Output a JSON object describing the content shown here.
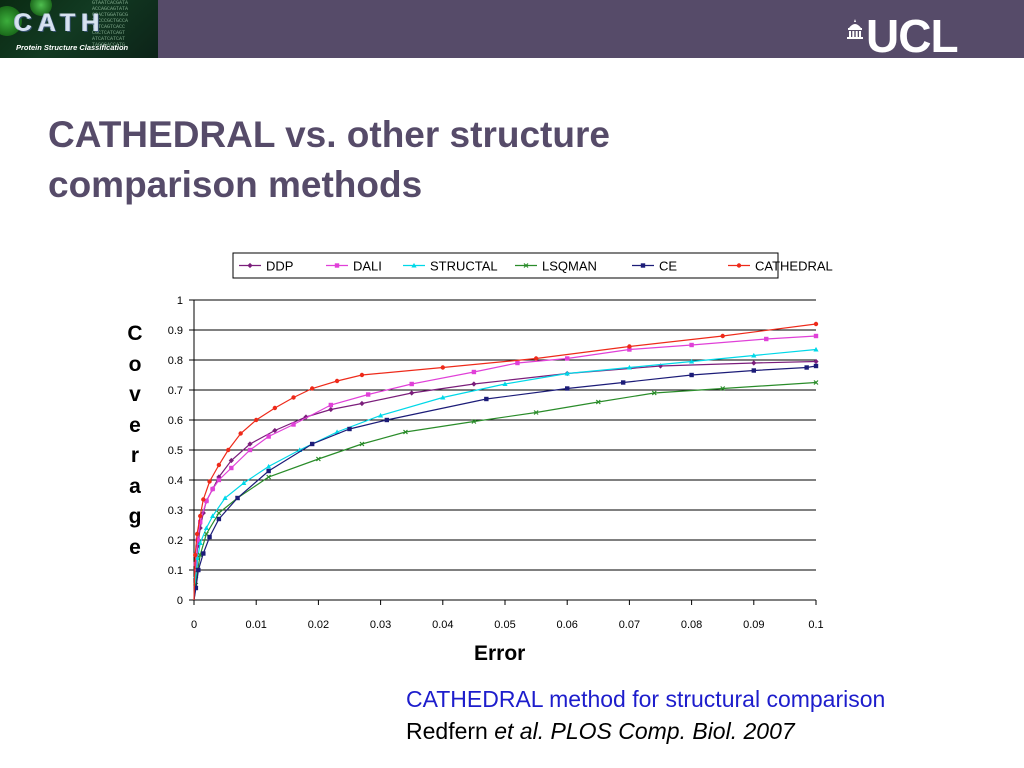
{
  "header": {
    "left_logo": {
      "name": "CATH",
      "subtitle": "Protein Structure Classification",
      "sequence_text": [
        "GTAATCACGATA",
        "ACCAGCAGTATA",
        "CGACTGGATGCG",
        "TACCCGCTGCCA",
        "TATCAGTCACC",
        "CGCTCATCAGT",
        "ATCATCATCAT",
        "TAGCGACCATG"
      ]
    },
    "right_logo": {
      "name": "UCL"
    },
    "bar_color": "#564b69"
  },
  "slide": {
    "title": "CATHEDRAL vs. other structure comparison methods",
    "ylabel_letters": [
      "C",
      "o",
      "v",
      "e",
      "r",
      "a",
      "g",
      "e"
    ],
    "xlabel": "Error",
    "caption_line1": "CATHEDRAL method for structural comparison",
    "caption_line2_prefix": "Redfern ",
    "caption_line2_italic": "et al. PLOS Comp. Biol. 2007"
  },
  "chart_data": {
    "type": "line",
    "title": "",
    "xlabel": "Error",
    "ylabel": "Coverage",
    "xlim": [
      0,
      0.1
    ],
    "ylim": [
      0,
      1
    ],
    "x_ticks": [
      "0",
      "0.01",
      "0.02",
      "0.03",
      "0.04",
      "0.05",
      "0.06",
      "0.07",
      "0.08",
      "0.09",
      "0.1"
    ],
    "y_ticks": [
      "0",
      "0.1",
      "0.2",
      "0.3",
      "0.4",
      "0.5",
      "0.6",
      "0.7",
      "0.8",
      "0.9",
      "1"
    ],
    "grid": "horizontal",
    "legend_position": "top",
    "series": [
      {
        "name": "DDP",
        "color": "#7b1e7b",
        "marker": "diamond",
        "points": [
          [
            0,
            0
          ],
          [
            0.0003,
            0.1
          ],
          [
            0.0006,
            0.18
          ],
          [
            0.001,
            0.24
          ],
          [
            0.0015,
            0.29
          ],
          [
            0.002,
            0.33
          ],
          [
            0.003,
            0.37
          ],
          [
            0.004,
            0.41
          ],
          [
            0.006,
            0.465
          ],
          [
            0.009,
            0.52
          ],
          [
            0.013,
            0.565
          ],
          [
            0.018,
            0.61
          ],
          [
            0.022,
            0.635
          ],
          [
            0.027,
            0.655
          ],
          [
            0.035,
            0.69
          ],
          [
            0.045,
            0.72
          ],
          [
            0.06,
            0.755
          ],
          [
            0.075,
            0.78
          ],
          [
            0.09,
            0.79
          ],
          [
            0.1,
            0.795
          ]
        ]
      },
      {
        "name": "DALI",
        "color": "#e040d8",
        "marker": "square",
        "points": [
          [
            0,
            0
          ],
          [
            0.0003,
            0.12
          ],
          [
            0.0006,
            0.2
          ],
          [
            0.001,
            0.26
          ],
          [
            0.002,
            0.33
          ],
          [
            0.003,
            0.37
          ],
          [
            0.004,
            0.4
          ],
          [
            0.006,
            0.44
          ],
          [
            0.009,
            0.5
          ],
          [
            0.012,
            0.545
          ],
          [
            0.016,
            0.585
          ],
          [
            0.022,
            0.65
          ],
          [
            0.028,
            0.685
          ],
          [
            0.035,
            0.72
          ],
          [
            0.045,
            0.76
          ],
          [
            0.052,
            0.79
          ],
          [
            0.06,
            0.805
          ],
          [
            0.07,
            0.835
          ],
          [
            0.08,
            0.85
          ],
          [
            0.092,
            0.87
          ],
          [
            0.1,
            0.88
          ]
        ]
      },
      {
        "name": "STRUCTAL",
        "color": "#00d8e8",
        "marker": "triangle",
        "points": [
          [
            0,
            0
          ],
          [
            0.0003,
            0.08
          ],
          [
            0.0006,
            0.14
          ],
          [
            0.001,
            0.19
          ],
          [
            0.002,
            0.24
          ],
          [
            0.003,
            0.28
          ],
          [
            0.005,
            0.34
          ],
          [
            0.008,
            0.39
          ],
          [
            0.012,
            0.445
          ],
          [
            0.017,
            0.5
          ],
          [
            0.023,
            0.56
          ],
          [
            0.03,
            0.615
          ],
          [
            0.04,
            0.675
          ],
          [
            0.05,
            0.72
          ],
          [
            0.06,
            0.755
          ],
          [
            0.07,
            0.775
          ],
          [
            0.08,
            0.795
          ],
          [
            0.09,
            0.815
          ],
          [
            0.1,
            0.835
          ]
        ]
      },
      {
        "name": "LSQMAN",
        "color": "#2a8c2a",
        "marker": "x",
        "points": [
          [
            0,
            0
          ],
          [
            0.0003,
            0.05
          ],
          [
            0.0006,
            0.1
          ],
          [
            0.001,
            0.15
          ],
          [
            0.002,
            0.22
          ],
          [
            0.004,
            0.29
          ],
          [
            0.007,
            0.34
          ],
          [
            0.012,
            0.41
          ],
          [
            0.02,
            0.47
          ],
          [
            0.027,
            0.52
          ],
          [
            0.034,
            0.56
          ],
          [
            0.045,
            0.595
          ],
          [
            0.055,
            0.625
          ],
          [
            0.065,
            0.66
          ],
          [
            0.074,
            0.69
          ],
          [
            0.085,
            0.705
          ],
          [
            0.1,
            0.725
          ]
        ]
      },
      {
        "name": "CE",
        "color": "#1c1c78",
        "marker": "square",
        "points": [
          [
            0,
            0
          ],
          [
            0.0003,
            0.04
          ],
          [
            0.0007,
            0.1
          ],
          [
            0.0015,
            0.155
          ],
          [
            0.0025,
            0.21
          ],
          [
            0.004,
            0.27
          ],
          [
            0.007,
            0.34
          ],
          [
            0.012,
            0.43
          ],
          [
            0.019,
            0.52
          ],
          [
            0.025,
            0.57
          ],
          [
            0.031,
            0.6
          ],
          [
            0.047,
            0.67
          ],
          [
            0.06,
            0.705
          ],
          [
            0.069,
            0.725
          ],
          [
            0.08,
            0.75
          ],
          [
            0.09,
            0.765
          ],
          [
            0.0985,
            0.775
          ],
          [
            0.1,
            0.78
          ]
        ]
      },
      {
        "name": "CATHEDRAL",
        "color": "#ee2a1a",
        "marker": "circle",
        "points": [
          [
            0,
            0
          ],
          [
            0.0002,
            0.15
          ],
          [
            0.0005,
            0.22
          ],
          [
            0.001,
            0.28
          ],
          [
            0.0015,
            0.335
          ],
          [
            0.0025,
            0.395
          ],
          [
            0.004,
            0.45
          ],
          [
            0.0055,
            0.5
          ],
          [
            0.0075,
            0.555
          ],
          [
            0.01,
            0.6
          ],
          [
            0.013,
            0.64
          ],
          [
            0.016,
            0.675
          ],
          [
            0.019,
            0.705
          ],
          [
            0.023,
            0.73
          ],
          [
            0.027,
            0.75
          ],
          [
            0.04,
            0.775
          ],
          [
            0.055,
            0.805
          ],
          [
            0.07,
            0.845
          ],
          [
            0.085,
            0.88
          ],
          [
            0.1,
            0.92
          ]
        ]
      }
    ]
  }
}
